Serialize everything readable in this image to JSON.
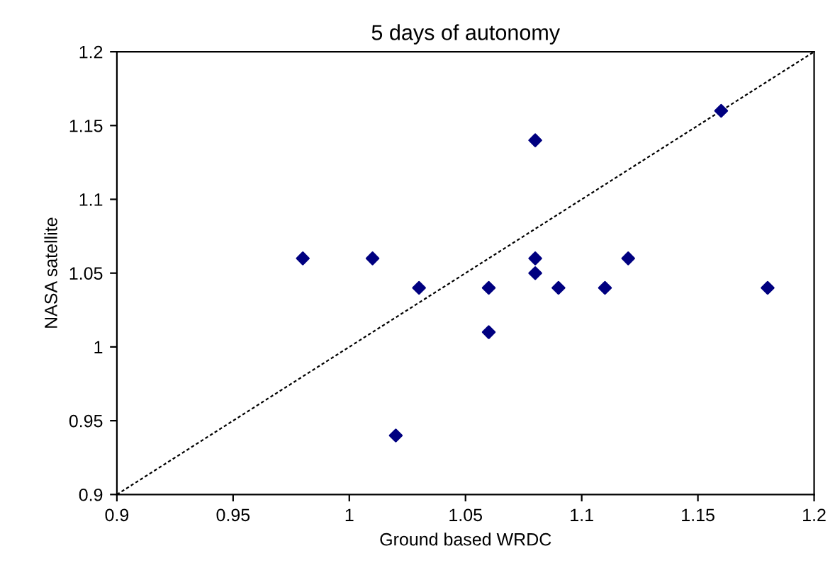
{
  "chart_data": {
    "type": "scatter",
    "title": "5 days of autonomy",
    "xlabel": "Ground based WRDC",
    "ylabel": "NASA satellite",
    "xlim": [
      0.9,
      1.2
    ],
    "xticks": [
      0.9,
      0.95,
      1,
      1.05,
      1.1,
      1.15,
      1.2
    ],
    "ylim": [
      0.9,
      1.2
    ],
    "yticks": [
      0.9,
      0.95,
      1,
      1.05,
      1.1,
      1.15,
      1.2
    ],
    "grid": false,
    "legend": false,
    "marker": "diamond",
    "series": [
      {
        "color": "#000080",
        "x": [
          0.98,
          1.01,
          1.02,
          1.03,
          1.06,
          1.06,
          1.08,
          1.08,
          1.08,
          1.09,
          1.11,
          1.12,
          1.16,
          1.18
        ],
        "values": [
          1.06,
          1.06,
          0.94,
          1.04,
          1.04,
          1.01,
          1.14,
          1.06,
          1.05,
          1.04,
          1.04,
          1.06,
          1.16,
          1.04
        ]
      },
      {
        "type": "line",
        "color": "#000000",
        "line_style": "dotted",
        "marker": "none",
        "x": [
          0.9,
          1.2
        ],
        "values": [
          0.9,
          1.2
        ]
      }
    ]
  }
}
